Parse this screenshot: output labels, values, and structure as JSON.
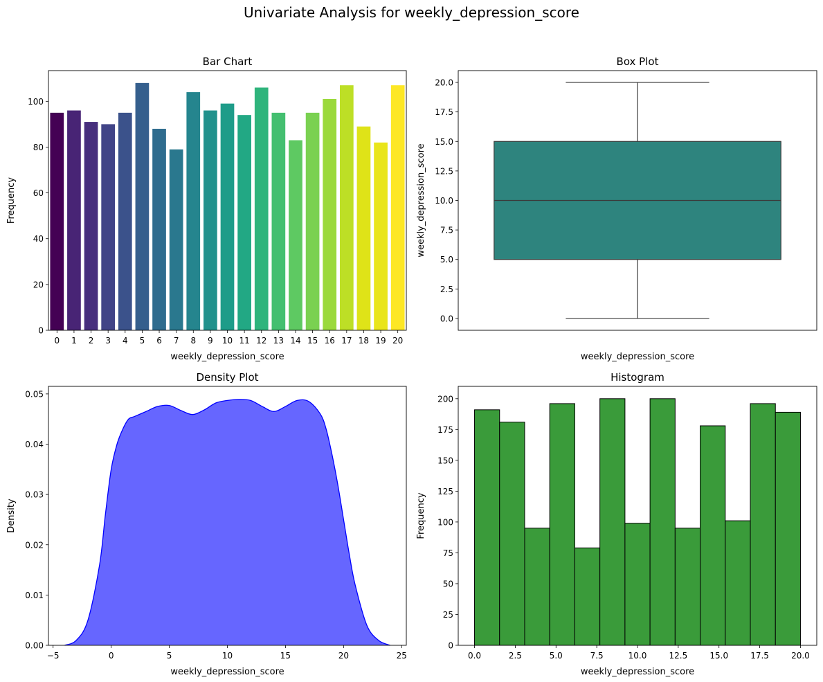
{
  "figure": {
    "suptitle": "Univariate Analysis for weekly_depression_score"
  },
  "chart_data": [
    {
      "type": "bar",
      "title": "Bar Chart",
      "xlabel": "weekly_depression_score",
      "ylabel": "Frequency",
      "categories": [
        "0",
        "1",
        "2",
        "3",
        "4",
        "5",
        "6",
        "7",
        "8",
        "9",
        "10",
        "11",
        "12",
        "13",
        "14",
        "15",
        "16",
        "17",
        "18",
        "19",
        "20"
      ],
      "values": [
        95,
        96,
        91,
        90,
        95,
        108,
        88,
        79,
        104,
        96,
        99,
        94,
        106,
        95,
        83,
        95,
        101,
        107,
        89,
        82,
        107
      ],
      "colors": [
        "#440154",
        "#482475",
        "#472f7d",
        "#414487",
        "#3b528b",
        "#355f8d",
        "#2f6c8e",
        "#2a788e",
        "#25858e",
        "#21918c",
        "#1e9c89",
        "#22a884",
        "#2fb47c",
        "#44bf70",
        "#5ec962",
        "#7ad151",
        "#9bd93c",
        "#bddf26",
        "#dfe318",
        "#e9e51a",
        "#fde725"
      ],
      "ylim": [
        0,
        113.4
      ],
      "yticks": [
        0,
        20,
        40,
        60,
        80,
        100
      ],
      "grid": false
    },
    {
      "type": "box",
      "title": "Box Plot",
      "xlabel": "weekly_depression_score",
      "ylabel": "weekly_depression_score",
      "min": 0.0,
      "q1": 5.0,
      "median": 10.0,
      "q3": 15.0,
      "max": 20.0,
      "color": "#2e847e",
      "ylim": [
        -1.0,
        21.0
      ],
      "yticks": [
        "0.0",
        "2.5",
        "5.0",
        "7.5",
        "10.0",
        "12.5",
        "15.0",
        "17.5",
        "20.0"
      ],
      "grid": false
    },
    {
      "type": "area",
      "title": "Density Plot",
      "xlabel": "weekly_depression_score",
      "ylabel": "Density",
      "x": [
        -4,
        -3,
        -2,
        -1,
        -0.5,
        0,
        0.5,
        1,
        1.5,
        2,
        3,
        4,
        5,
        6,
        7,
        8,
        9,
        10,
        11,
        12,
        13,
        14,
        15,
        16,
        17,
        18,
        18.5,
        19,
        19.5,
        20,
        20.5,
        21,
        22,
        23,
        24
      ],
      "y": [
        0.0,
        0.001,
        0.005,
        0.016,
        0.026,
        0.035,
        0.04,
        0.043,
        0.045,
        0.0455,
        0.0465,
        0.0475,
        0.0477,
        0.0467,
        0.0459,
        0.0468,
        0.0482,
        0.0487,
        0.0489,
        0.0487,
        0.0475,
        0.0465,
        0.0475,
        0.0487,
        0.0485,
        0.046,
        0.043,
        0.038,
        0.032,
        0.025,
        0.018,
        0.012,
        0.004,
        0.001,
        0.0
      ],
      "fill": "#6666ff",
      "line": "#0000ff",
      "xlim": [
        -5.4,
        25.4
      ],
      "ylim": [
        0,
        0.0515
      ],
      "xticks": [
        -5,
        0,
        5,
        10,
        15,
        20,
        25
      ],
      "yticks": [
        "0.00",
        "0.01",
        "0.02",
        "0.03",
        "0.04",
        "0.05"
      ],
      "grid": false
    },
    {
      "type": "histogram",
      "title": "Histogram",
      "xlabel": "weekly_depression_score",
      "ylabel": "Frequency",
      "bin_edges": [
        0,
        1.538,
        3.077,
        4.615,
        6.154,
        7.692,
        9.231,
        10.769,
        12.308,
        13.846,
        15.385,
        16.923,
        18.462,
        20
      ],
      "values": [
        191,
        181,
        95,
        196,
        79,
        200,
        99,
        200,
        95,
        178,
        101,
        196,
        189
      ],
      "fill": "#3a9b3a",
      "xlim": [
        -1.0,
        21.0
      ],
      "ylim": [
        0,
        210
      ],
      "xticks": [
        "0.0",
        "2.5",
        "5.0",
        "7.5",
        "10.0",
        "12.5",
        "15.0",
        "17.5",
        "20.0"
      ],
      "yticks": [
        0,
        25,
        50,
        75,
        100,
        125,
        150,
        175,
        200
      ],
      "grid": false
    }
  ]
}
